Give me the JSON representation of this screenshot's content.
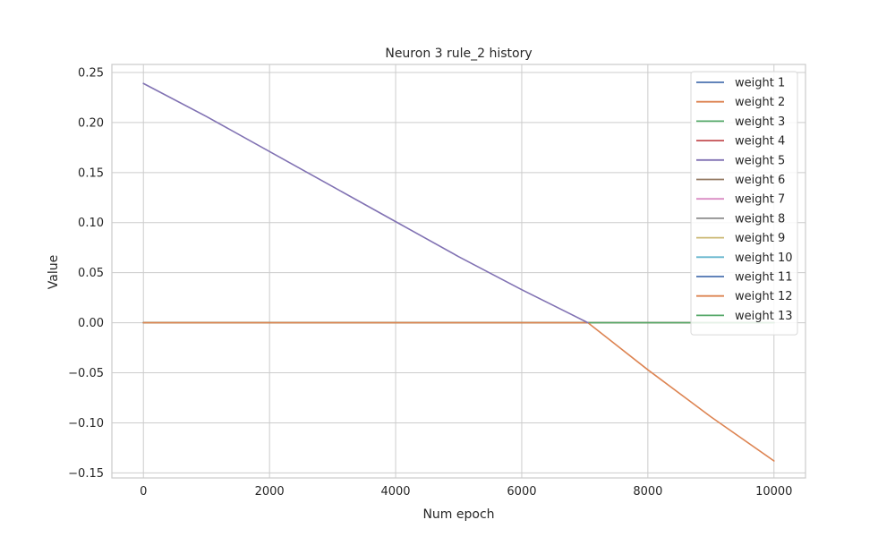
{
  "chart_data": {
    "type": "line",
    "title": "Neuron 3 rule_2  history",
    "xlabel": "Num epoch",
    "ylabel": "Value",
    "xlim": [
      -500,
      10500
    ],
    "ylim": [
      -0.155,
      0.258
    ],
    "xticks": [
      0,
      2000,
      4000,
      6000,
      8000,
      10000
    ],
    "xtick_labels": [
      "0",
      "2000",
      "4000",
      "6000",
      "8000",
      "10000"
    ],
    "yticks": [
      -0.15,
      -0.1,
      -0.05,
      0.0,
      0.05,
      0.1,
      0.15,
      0.2,
      0.25
    ],
    "ytick_labels": [
      "−0.15",
      "−0.10",
      "−0.05",
      "0.00",
      "0.05",
      "0.10",
      "0.15",
      "0.20",
      "0.25"
    ],
    "grid": true,
    "legend_position": "top-right",
    "series": [
      {
        "name": "weight 1",
        "color": "#4c72b0",
        "x": [
          0,
          10000
        ],
        "y": [
          0,
          0
        ]
      },
      {
        "name": "weight 2",
        "color": "#dd8452",
        "x": [
          0,
          7050,
          8000,
          9000,
          10000
        ],
        "y": [
          0,
          0,
          -0.047,
          -0.094,
          -0.138
        ]
      },
      {
        "name": "weight 3",
        "color": "#55a868",
        "x": [
          0,
          10000
        ],
        "y": [
          0,
          0
        ]
      },
      {
        "name": "weight 4",
        "color": "#c44e52",
        "x": [
          0,
          10000
        ],
        "y": [
          0,
          0
        ]
      },
      {
        "name": "weight 5",
        "color": "#8172b3",
        "x": [
          0,
          1000,
          2000,
          3000,
          4000,
          5000,
          6000,
          7050
        ],
        "y": [
          0.239,
          0.206,
          0.171,
          0.136,
          0.101,
          0.066,
          0.033,
          0
        ]
      },
      {
        "name": "weight 6",
        "color": "#937860",
        "x": [
          0,
          10000
        ],
        "y": [
          0,
          0
        ]
      },
      {
        "name": "weight 7",
        "color": "#da8bc3",
        "x": [
          0,
          10000
        ],
        "y": [
          0,
          0
        ]
      },
      {
        "name": "weight 8",
        "color": "#8c8c8c",
        "x": [
          0,
          10000
        ],
        "y": [
          0,
          0
        ]
      },
      {
        "name": "weight 9",
        "color": "#ccb974",
        "x": [
          0,
          10000
        ],
        "y": [
          0,
          0
        ]
      },
      {
        "name": "weight 10",
        "color": "#64b5cd",
        "x": [
          0,
          10000
        ],
        "y": [
          0,
          0
        ]
      },
      {
        "name": "weight 11",
        "color": "#4c72b0",
        "x": [
          0,
          10000
        ],
        "y": [
          0,
          0
        ]
      },
      {
        "name": "weight 12",
        "color": "#dd8452",
        "x": [
          0,
          10000
        ],
        "y": [
          0,
          0
        ]
      },
      {
        "name": "weight 13",
        "color": "#55a868",
        "x": [
          0,
          10000
        ],
        "y": [
          0,
          0
        ]
      }
    ]
  }
}
